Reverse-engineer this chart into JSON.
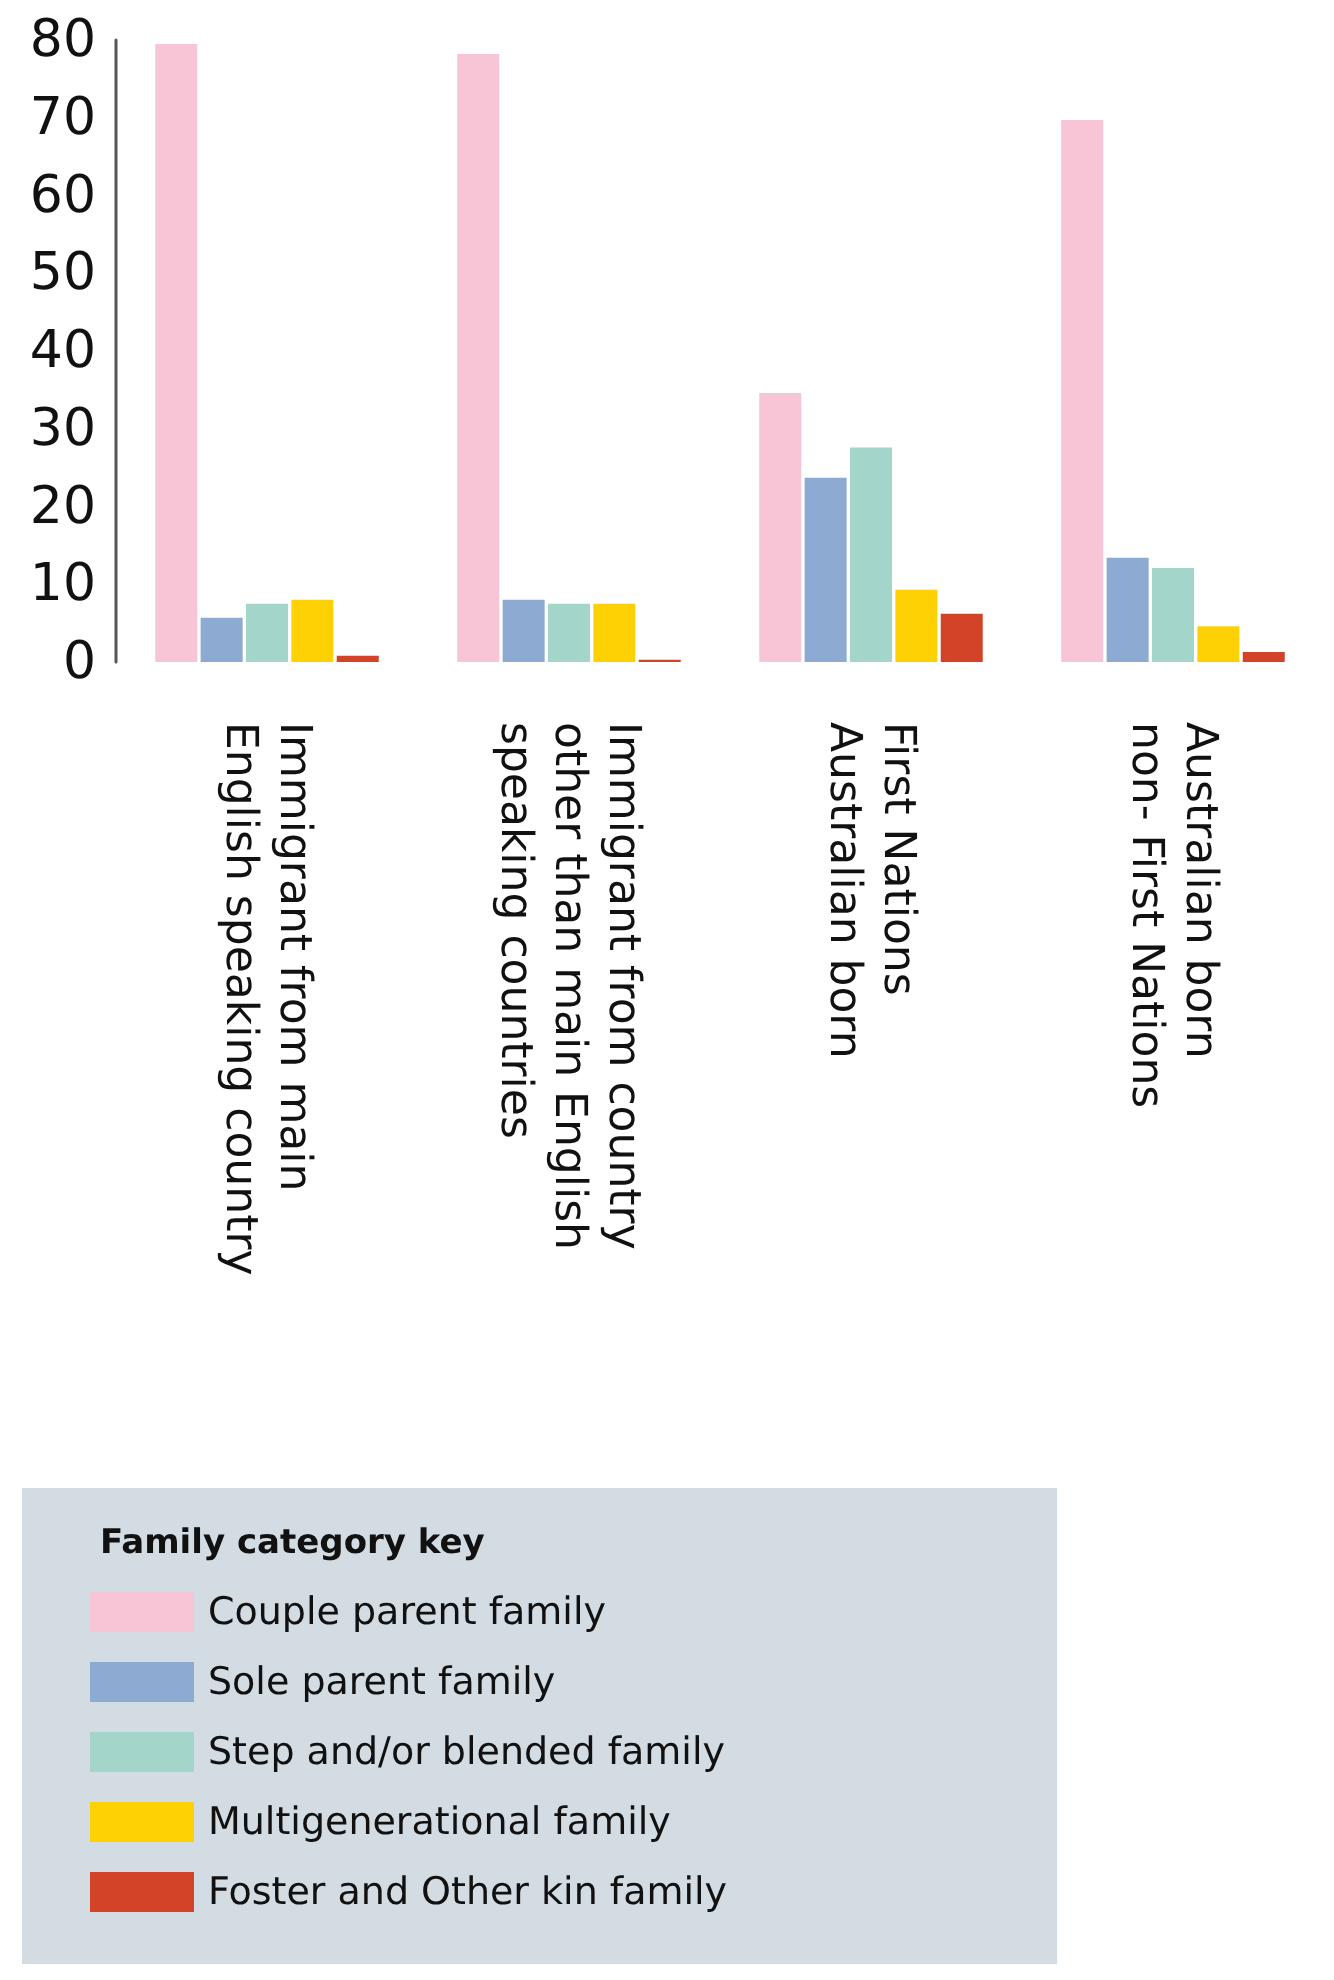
{
  "chart_data": {
    "type": "bar",
    "categories": [
      "Immigrant from main\nEnglish speaking country",
      "Immigrant from country\nother than main English\nspeaking countries",
      "First Nations\nAustralian born",
      "Australian born\nnon- First Nations"
    ],
    "series": [
      {
        "name": "Couple parent family",
        "color": "#f7c5d5",
        "values": [
          79.5,
          78.2,
          34.6,
          69.7
        ]
      },
      {
        "name": "Sole parent family",
        "color": "#8caad2",
        "values": [
          5.7,
          8.0,
          23.7,
          13.4
        ]
      },
      {
        "name": "Step and/or blended family",
        "color": "#a3d5ca",
        "values": [
          7.5,
          7.5,
          27.6,
          12.1
        ]
      },
      {
        "name": "Multigenerational family",
        "color": "#fed104",
        "values": [
          8.0,
          7.5,
          9.3,
          4.6
        ]
      },
      {
        "name": "Foster and Other kin family",
        "color": "#d34327",
        "values": [
          0.8,
          0.3,
          6.2,
          1.3
        ]
      }
    ],
    "ylim": [
      0,
      80
    ],
    "yticks": [
      0,
      10,
      20,
      30,
      40,
      50,
      60,
      70,
      80
    ],
    "grid": false,
    "legend": "bottom",
    "legend_title": "Family category key"
  }
}
